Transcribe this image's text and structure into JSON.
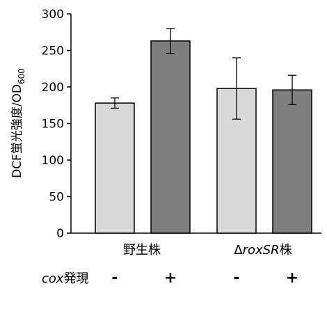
{
  "chart_data": {
    "type": "bar",
    "ylabel": "DCF蛍光強度/OD",
    "ylabel_subscript": "600",
    "ylim": [
      0,
      300
    ],
    "yticks": [
      "0",
      "50",
      "100",
      "150",
      "200",
      "250",
      "300"
    ],
    "grid": false,
    "groups": [
      {
        "label": "野生株",
        "label_parts": [
          {
            "text": "野生株",
            "italic": false
          }
        ]
      },
      {
        "label": "ΔroxSR株",
        "label_parts": [
          {
            "text": "Δ",
            "italic": false
          },
          {
            "text": "roxSR",
            "italic": true
          },
          {
            "text": "株",
            "italic": false
          }
        ]
      }
    ],
    "row_label_parts": [
      {
        "text": "cox",
        "italic": true
      },
      {
        "text": "発現",
        "italic": false
      }
    ],
    "categories": [
      "-",
      "+",
      "-",
      "+"
    ],
    "values": [
      178,
      263,
      198,
      196
    ],
    "errors": [
      7,
      17,
      42,
      20
    ],
    "colors": [
      "#d9d9d9",
      "#7f7f7f",
      "#d9d9d9",
      "#7f7f7f"
    ]
  }
}
